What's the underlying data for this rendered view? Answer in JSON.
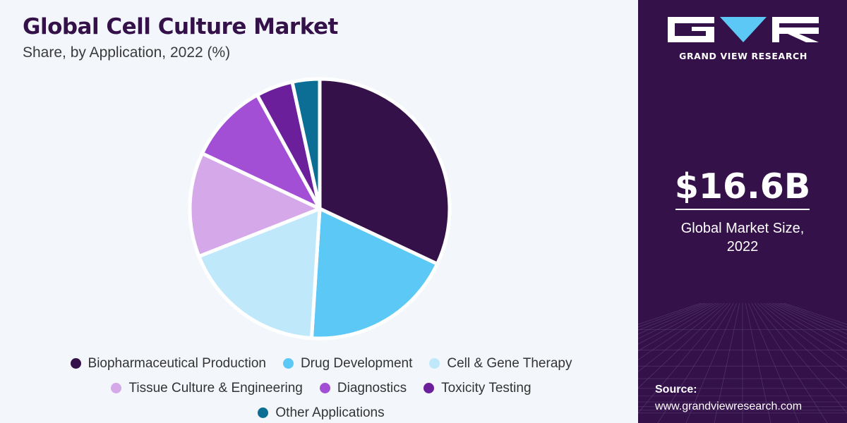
{
  "header": {
    "title": "Global Cell Culture Market",
    "subtitle": "Share, by Application, 2022 (%)"
  },
  "chart_data": {
    "type": "pie",
    "title": "Global Cell Culture Market",
    "subtitle": "Share, by Application, 2022 (%)",
    "legend_position": "bottom",
    "categories": [
      "Biopharmaceutical Production",
      "Drug Development",
      "Cell & Gene Therapy",
      "Tissue Culture & Engineering",
      "Diagnostics",
      "Toxicity Testing",
      "Other Applications"
    ],
    "values": [
      32,
      19,
      18,
      13,
      10,
      4.6,
      3.4
    ],
    "colors": [
      "#35114a",
      "#5bc8f5",
      "#bfe8fa",
      "#d5a8ea",
      "#a24fd6",
      "#6b1f9a",
      "#0c6e94"
    ]
  },
  "brand": {
    "name": "GRAND VIEW RESEARCH"
  },
  "summary": {
    "value": "$16.6B",
    "label_line1": "Global Market Size,",
    "label_line2": "2022"
  },
  "source": {
    "label": "Source:",
    "url": "www.grandviewresearch.com"
  },
  "colors": {
    "sidebar_bg": "#35114a",
    "page_bg": "#f3f7fc",
    "accent": "#5bc8f5"
  }
}
